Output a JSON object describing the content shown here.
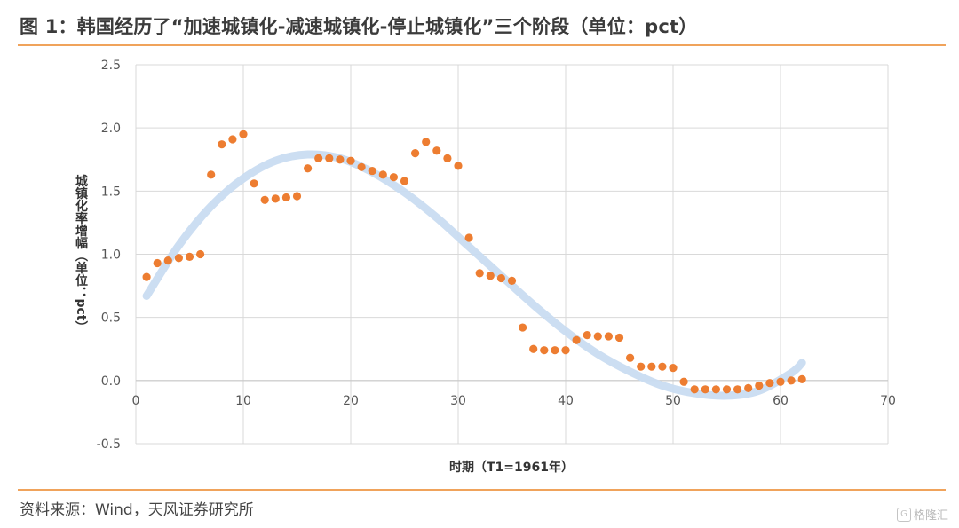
{
  "header": {
    "title": "图 1：韩国经历了“加速城镇化-减速城镇化-停止城镇化”三个阶段（单位：pct）"
  },
  "footer": {
    "source": "资料来源：Wind，天风证券研究所",
    "watermark": "格隆汇"
  },
  "colors": {
    "accent_rule": "#f0a35b",
    "points": "#ed7d31",
    "trend": "#c9dcf1",
    "grid": "#d9d9d9"
  },
  "chart_data": {
    "type": "scatter",
    "title": "",
    "xlabel": "时期（T1=1961年）",
    "ylabel": "城镇化率增幅（单位：pct）",
    "xlim": [
      0,
      70
    ],
    "ylim": [
      -0.5,
      2.5
    ],
    "x_ticks": [
      "0",
      "10",
      "20",
      "30",
      "40",
      "50",
      "60",
      "70"
    ],
    "y_ticks": [
      "2.5",
      "2.0",
      "1.5",
      "1.0",
      "0.5",
      "0.0",
      "-0.5"
    ],
    "grid": "vertical and horizontal",
    "series": [
      {
        "kind": "points",
        "x": [
          1,
          2,
          3,
          4,
          5,
          6,
          7,
          8,
          9,
          10,
          11,
          12,
          13,
          14,
          15,
          16,
          17,
          18,
          19,
          20,
          21,
          22,
          23,
          24,
          25,
          26,
          27,
          28,
          29,
          30,
          31,
          32,
          33,
          34,
          35,
          36,
          37,
          38,
          39,
          40,
          41,
          42,
          43,
          44,
          45,
          46,
          47,
          48,
          49,
          50,
          51,
          52,
          53,
          54,
          55,
          56,
          57,
          58,
          59,
          60,
          61,
          62
        ],
        "y": [
          0.82,
          0.93,
          0.95,
          0.97,
          0.98,
          1.0,
          1.63,
          1.87,
          1.91,
          1.95,
          1.56,
          1.43,
          1.44,
          1.45,
          1.46,
          1.68,
          1.76,
          1.76,
          1.75,
          1.74,
          1.69,
          1.66,
          1.63,
          1.61,
          1.58,
          1.8,
          1.89,
          1.82,
          1.76,
          1.7,
          1.13,
          0.85,
          0.83,
          0.81,
          0.79,
          0.42,
          0.25,
          0.24,
          0.24,
          0.24,
          0.32,
          0.36,
          0.35,
          0.35,
          0.34,
          0.18,
          0.11,
          0.11,
          0.11,
          0.1,
          -0.01,
          -0.07,
          -0.07,
          -0.07,
          -0.07,
          -0.07,
          -0.06,
          -0.04,
          -0.02,
          -0.01,
          0.0,
          0.01
        ]
      },
      {
        "kind": "trend",
        "x": [
          1,
          4,
          7,
          10,
          13,
          16,
          19,
          22,
          25,
          28,
          31,
          34,
          37,
          40,
          43,
          46,
          49,
          52,
          55,
          58,
          61,
          62
        ],
        "y": [
          0.67,
          1.07,
          1.38,
          1.6,
          1.74,
          1.79,
          1.76,
          1.65,
          1.49,
          1.29,
          1.06,
          0.83,
          0.6,
          0.39,
          0.21,
          0.07,
          -0.04,
          -0.1,
          -0.12,
          -0.08,
          0.06,
          0.14
        ]
      }
    ]
  }
}
